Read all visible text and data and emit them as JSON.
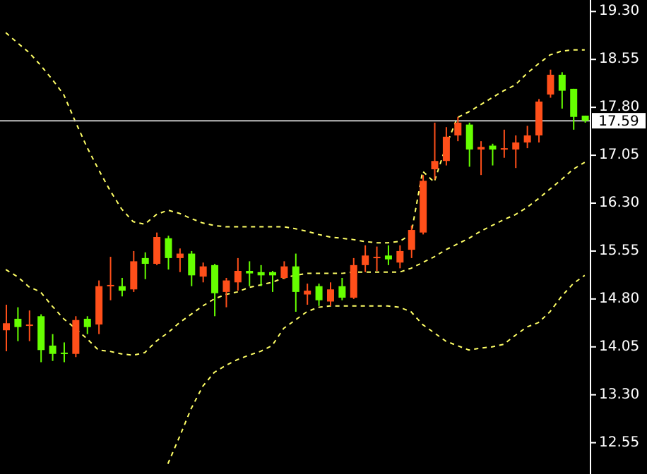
{
  "chart_data": {
    "type": "candlestick",
    "categories": [
      null,
      null,
      null,
      null,
      null,
      null,
      null,
      null,
      null,
      null,
      null,
      null,
      null,
      null,
      null,
      null,
      null,
      null,
      null,
      null,
      null,
      null,
      null,
      null,
      null,
      null,
      null,
      null,
      null,
      null,
      null,
      null,
      null,
      null,
      null,
      null,
      null,
      null,
      null,
      null,
      null,
      null,
      null,
      null,
      null,
      null,
      null,
      null,
      null,
      null,
      null
    ],
    "ohlc": [
      [
        14.31,
        14.71,
        13.98,
        14.42
      ],
      [
        14.49,
        14.67,
        14.14,
        14.36
      ],
      [
        14.38,
        14.62,
        14.14,
        14.4
      ],
      [
        14.53,
        14.56,
        13.81,
        14.0
      ],
      [
        14.07,
        14.25,
        13.83,
        13.94
      ],
      [
        13.96,
        14.12,
        13.81,
        13.94
      ],
      [
        13.94,
        14.53,
        13.89,
        14.47
      ],
      [
        14.49,
        14.53,
        14.25,
        14.36
      ],
      [
        14.4,
        15.09,
        14.25,
        15.0
      ],
      [
        15.0,
        15.46,
        14.78,
        15.02
      ],
      [
        15.0,
        15.13,
        14.84,
        14.93
      ],
      [
        14.95,
        15.55,
        14.91,
        15.39
      ],
      [
        15.44,
        15.53,
        15.11,
        15.35
      ],
      [
        15.35,
        15.84,
        15.33,
        15.77
      ],
      [
        15.75,
        15.79,
        15.26,
        15.44
      ],
      [
        15.44,
        15.59,
        15.22,
        15.51
      ],
      [
        15.51,
        15.55,
        15.0,
        15.17
      ],
      [
        15.15,
        15.37,
        15.06,
        15.31
      ],
      [
        15.33,
        15.35,
        14.53,
        14.89
      ],
      [
        14.91,
        15.13,
        14.67,
        15.09
      ],
      [
        15.06,
        15.44,
        14.93,
        15.24
      ],
      [
        15.24,
        15.39,
        15.0,
        15.2
      ],
      [
        15.22,
        15.33,
        15.0,
        15.17
      ],
      [
        15.22,
        15.24,
        14.91,
        15.17
      ],
      [
        15.13,
        15.39,
        15.11,
        15.31
      ],
      [
        15.31,
        15.51,
        14.6,
        14.91
      ],
      [
        14.87,
        15.04,
        14.71,
        14.93
      ],
      [
        15.0,
        15.04,
        14.69,
        14.78
      ],
      [
        14.76,
        15.06,
        14.69,
        14.95
      ],
      [
        15.0,
        15.13,
        14.78,
        14.82
      ],
      [
        14.82,
        15.44,
        14.8,
        15.33
      ],
      [
        15.33,
        15.64,
        15.22,
        15.48
      ],
      [
        15.44,
        15.62,
        15.24,
        15.46
      ],
      [
        15.48,
        15.64,
        15.33,
        15.42
      ],
      [
        15.37,
        15.64,
        15.28,
        15.55
      ],
      [
        15.57,
        15.95,
        15.44,
        15.88
      ],
      [
        15.84,
        16.74,
        15.81,
        16.65
      ],
      [
        16.83,
        17.56,
        16.67,
        16.96
      ],
      [
        16.96,
        17.49,
        16.89,
        17.34
      ],
      [
        17.36,
        17.65,
        17.27,
        17.56
      ],
      [
        17.53,
        17.56,
        16.87,
        17.14
      ],
      [
        17.14,
        17.27,
        16.74,
        17.18
      ],
      [
        17.2,
        17.23,
        16.89,
        17.14
      ],
      [
        17.14,
        17.45,
        17.01,
        17.16
      ],
      [
        17.14,
        17.36,
        16.85,
        17.25
      ],
      [
        17.25,
        17.51,
        17.16,
        17.36
      ],
      [
        17.36,
        17.93,
        17.25,
        17.89
      ],
      [
        18.0,
        18.39,
        17.95,
        18.31
      ],
      [
        18.31,
        18.35,
        17.78,
        18.06
      ],
      [
        18.09,
        18.09,
        17.45,
        17.65
      ],
      [
        17.67,
        17.67,
        17.56,
        17.59
      ]
    ],
    "colors": [
      "#ff4f1a",
      "#66ff00",
      "#ff4f1a",
      "#66ff00",
      "#66ff00",
      "#66ff00",
      "#ff4f1a",
      "#66ff00",
      "#ff4f1a",
      "#ff4f1a",
      "#66ff00",
      "#ff4f1a",
      "#66ff00",
      "#ff4f1a",
      "#66ff00",
      "#ff4f1a",
      "#66ff00",
      "#ff4f1a",
      "#66ff00",
      "#ff4f1a",
      "#ff4f1a",
      "#66ff00",
      "#66ff00",
      "#66ff00",
      "#ff4f1a",
      "#66ff00",
      "#ff4f1a",
      "#66ff00",
      "#ff4f1a",
      "#66ff00",
      "#ff4f1a",
      "#ff4f1a",
      "#ff4f1a",
      "#66ff00",
      "#ff4f1a",
      "#ff4f1a",
      "#ff4f1a",
      "#ff4f1a",
      "#ff4f1a",
      "#ff4f1a",
      "#66ff00",
      "#ff4f1a",
      "#66ff00",
      "#ff4f1a",
      "#ff4f1a",
      "#ff4f1a",
      "#ff4f1a",
      "#ff4f1a",
      "#66ff00",
      "#66ff00",
      "#66ff00"
    ],
    "series": [
      {
        "type": "line",
        "color": "#ffff66",
        "line_style": "dashed",
        "values": [
          18.97,
          18.81,
          18.66,
          18.46,
          18.24,
          18.0,
          17.58,
          17.18,
          16.83,
          16.5,
          16.21,
          16.01,
          15.97,
          16.12,
          16.19,
          16.14,
          16.06,
          15.99,
          15.95,
          15.93,
          15.93,
          15.93,
          15.93,
          15.93,
          15.93,
          15.9,
          15.86,
          15.81,
          15.77,
          15.75,
          15.73,
          15.7,
          15.68,
          15.68,
          15.7,
          15.81,
          16.8,
          16.63,
          17.18,
          17.64,
          17.73,
          17.84,
          17.95,
          18.06,
          18.15,
          18.33,
          18.48,
          18.62,
          18.68,
          18.7,
          18.7
        ]
      },
      {
        "type": "line",
        "color": "#ffff66",
        "line_style": "dashed",
        "values": [
          15.26,
          15.15,
          14.99,
          14.91,
          14.69,
          14.49,
          14.34,
          14.18,
          14.0,
          13.98,
          13.94,
          13.92,
          13.96,
          14.14,
          14.27,
          14.43,
          14.56,
          14.69,
          14.8,
          14.87,
          14.91,
          14.98,
          15.02,
          15.06,
          15.13,
          15.17,
          15.2,
          15.2,
          15.2,
          15.2,
          15.22,
          15.22,
          15.22,
          15.22,
          15.22,
          15.28,
          15.37,
          15.46,
          15.57,
          15.66,
          15.75,
          15.86,
          15.95,
          16.04,
          16.12,
          16.23,
          16.37,
          16.52,
          16.67,
          16.83,
          16.94
        ]
      },
      {
        "type": "line",
        "color": "#ffff66",
        "line_style": "dashed",
        "values": [
          null,
          null,
          null,
          null,
          null,
          null,
          null,
          null,
          null,
          null,
          null,
          null,
          null,
          null,
          12.22,
          12.64,
          13.08,
          13.43,
          13.65,
          13.76,
          13.85,
          13.92,
          13.98,
          14.07,
          14.34,
          14.47,
          14.6,
          14.67,
          14.69,
          14.69,
          14.69,
          14.69,
          14.69,
          14.69,
          14.67,
          14.6,
          14.4,
          14.27,
          14.14,
          14.07,
          14.0,
          14.03,
          14.05,
          14.09,
          14.23,
          14.36,
          14.43,
          14.6,
          14.84,
          15.04,
          15.17
        ]
      }
    ],
    "ylim": [
      12.06,
      19.48
    ],
    "yticks": [
      {
        "value": 12.55,
        "label": "12.55"
      },
      {
        "value": 13.3,
        "label": "13.30"
      },
      {
        "value": 14.05,
        "label": "14.05"
      },
      {
        "value": 14.8,
        "label": "14.80"
      },
      {
        "value": 15.55,
        "label": "15.55"
      },
      {
        "value": 16.3,
        "label": "16.30"
      },
      {
        "value": 17.05,
        "label": "17.05"
      },
      {
        "value": 17.8,
        "label": "17.80"
      },
      {
        "value": 18.55,
        "label": "18.55"
      },
      {
        "value": 19.3,
        "label": "19.30"
      }
    ],
    "ref_lines": [
      {
        "axis": "y",
        "value": 17.59,
        "label": "17.59",
        "color": "#c0c0c0"
      }
    ],
    "tick_labels": "y",
    "marker": "none"
  }
}
